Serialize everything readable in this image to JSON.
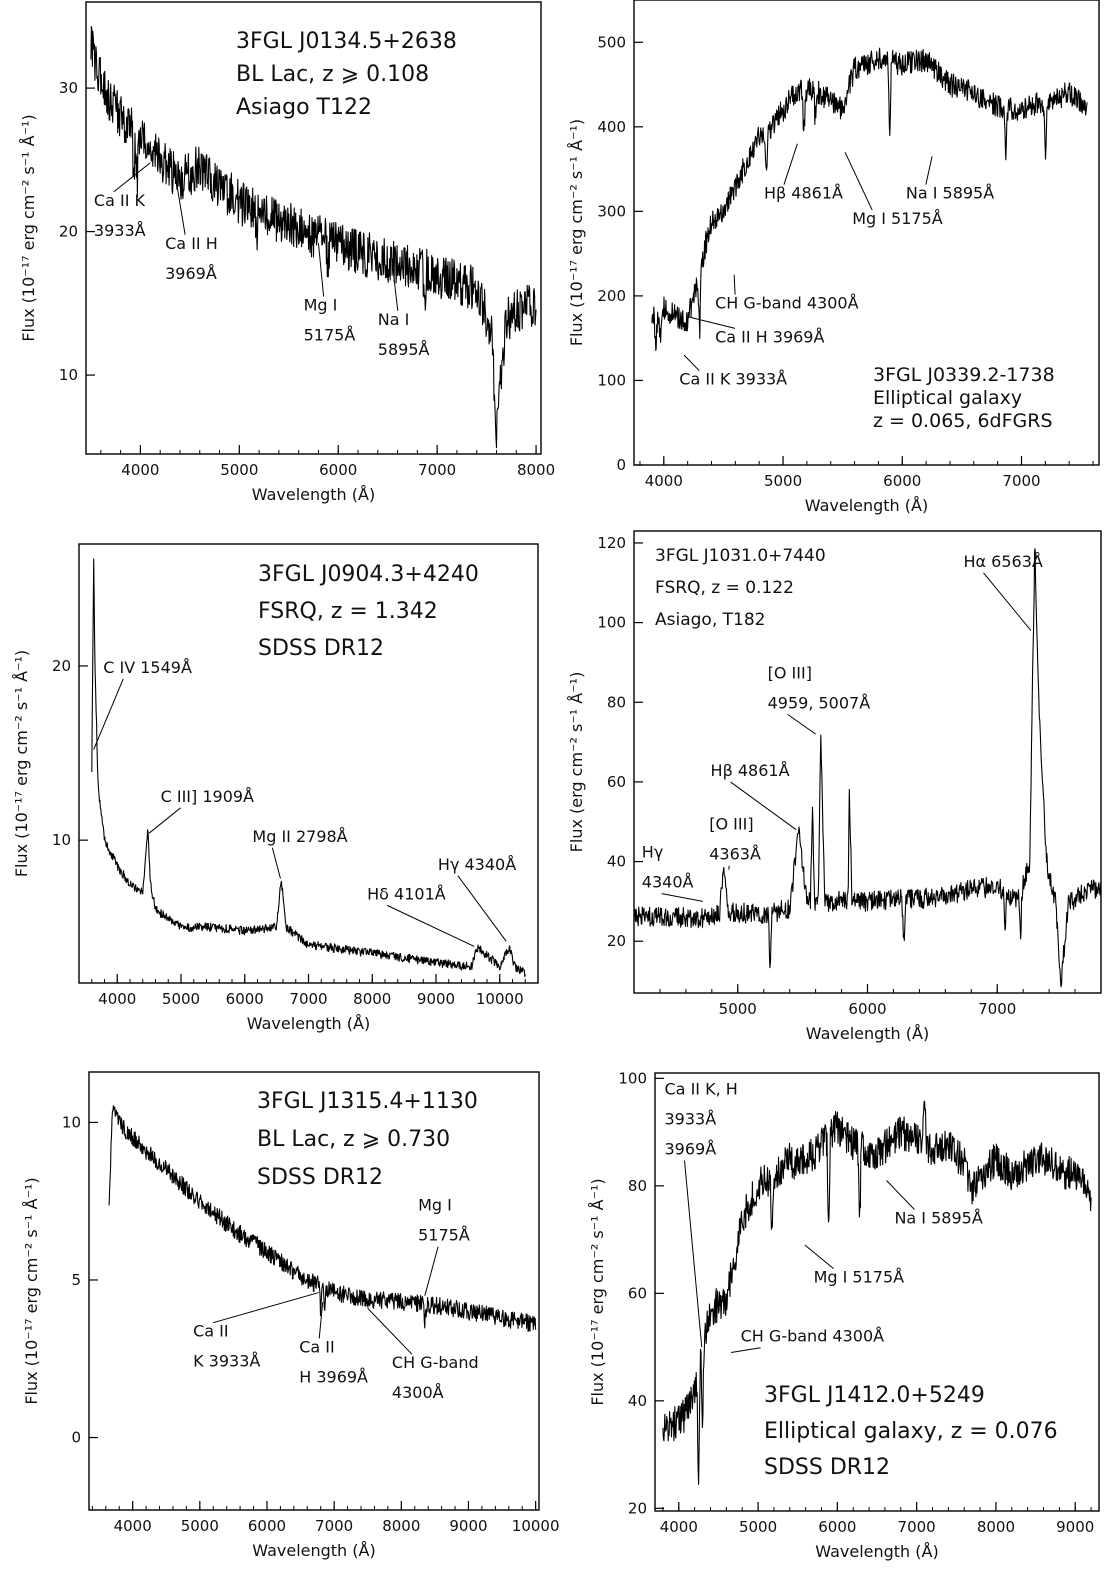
{
  "chart_data": [
    {
      "type": "line",
      "xlabel": "Wavelength (Å)",
      "ylabel": "Flux (10⁻¹⁷ erg cm⁻² s⁻¹ Å⁻¹)",
      "xlim": [
        3450,
        8050
      ],
      "ylim": [
        4.5,
        36
      ],
      "xticks": [
        4000,
        5000,
        6000,
        7000,
        8000
      ],
      "yticks": [
        10,
        20,
        30
      ],
      "info": [
        "3FGL J0134.5+2638",
        "BL Lac, z ⩾ 0.108",
        "Asiago T122"
      ],
      "series": [
        {
          "x": [
            3500,
            3600,
            3700,
            3800,
            4000,
            4200,
            4400,
            4600,
            5000,
            5500,
            6000,
            6500,
            7000,
            7400,
            7550,
            7600,
            7700,
            8000
          ],
          "y": [
            33,
            30.5,
            29,
            28,
            26.5,
            25,
            23.5,
            24.5,
            22,
            20.5,
            19,
            18,
            17,
            16,
            13,
            6,
            14,
            15
          ],
          "noise": 1.6,
          "dips": [
            [
              3933,
              3
            ],
            [
              3969,
              3
            ],
            [
              5175,
              2
            ],
            [
              5895,
              2
            ],
            [
              6870,
              3
            ]
          ]
        }
      ],
      "annotations": [
        {
          "lines": [
            "Ca II K",
            "3933Å"
          ],
          "x": 4100,
          "y": 24.8,
          "tx": 3530,
          "ty": 21.8
        },
        {
          "lines": [
            "Ca II H",
            "3969Å"
          ],
          "x": 4370,
          "y": 23.2,
          "tx": 4250,
          "ty": 18.8
        },
        {
          "lines": [
            "Mg I",
            "5175Å"
          ],
          "x": 5800,
          "y": 19.2,
          "tx": 5650,
          "ty": 14.5
        },
        {
          "lines": [
            "Na I",
            "5895Å"
          ],
          "x": 6550,
          "y": 17.6,
          "tx": 6400,
          "ty": 13.5
        }
      ]
    },
    {
      "type": "line",
      "xlabel": "Wavelength (Å)",
      "ylabel": "Flux (10⁻¹⁷ erg cm⁻² s⁻¹ Å⁻¹)",
      "xlim": [
        3750,
        7650
      ],
      "ylim": [
        0,
        550
      ],
      "xticks": [
        4000,
        5000,
        6000,
        7000
      ],
      "yticks": [
        0,
        100,
        200,
        300,
        400,
        500
      ],
      "info": [
        "3FGL J0339.2-1738",
        "Elliptical galaxy",
        "z = 0.065, 6dFGRS"
      ],
      "series": [
        {
          "x": [
            3900,
            4000,
            4100,
            4200,
            4300,
            4400,
            4500,
            4600,
            4700,
            4800,
            4900,
            5000,
            5100,
            5200,
            5300,
            5400,
            5500,
            5600,
            5800,
            6000,
            6200,
            6400,
            6600,
            6800,
            7000,
            7200,
            7400,
            7550
          ],
          "y": [
            175,
            185,
            175,
            170,
            230,
            290,
            300,
            330,
            360,
            390,
            400,
            420,
            440,
            445,
            440,
            430,
            420,
            470,
            480,
            475,
            480,
            450,
            440,
            425,
            420,
            430,
            440,
            420
          ],
          "noise": 14,
          "dips": [
            [
              3933,
              40
            ],
            [
              3969,
              30
            ],
            [
              4300,
              70
            ],
            [
              4861,
              40
            ],
            [
              5175,
              50
            ],
            [
              5270,
              30
            ],
            [
              5895,
              80
            ],
            [
              6870,
              50
            ],
            [
              7200,
              60
            ]
          ]
        }
      ],
      "annotations": [
        {
          "lines": [
            "CH G-band 4300Å"
          ],
          "x": 4590,
          "y": 225,
          "tx": 4430,
          "ty": 185
        },
        {
          "lines": [
            "Ca II H 3969Å"
          ],
          "x": 4210,
          "y": 175,
          "tx": 4430,
          "ty": 145
        },
        {
          "lines": [
            "Ca II K 3933Å"
          ],
          "x": 4170,
          "y": 130,
          "tx": 4130,
          "ty": 95
        },
        {
          "lines": [
            "Hβ 4861Å"
          ],
          "x": 5120,
          "y": 380,
          "tx": 4840,
          "ty": 315
        },
        {
          "lines": [
            "Mg I 5175Å"
          ],
          "x": 5520,
          "y": 370,
          "tx": 5580,
          "ty": 285
        },
        {
          "lines": [
            "Na I 5895Å"
          ],
          "x": 6250,
          "y": 365,
          "tx": 6030,
          "ty": 315
        }
      ]
    },
    {
      "type": "line",
      "xlabel": "Wavelength (Å)",
      "ylabel": "Flux (10⁻¹⁷ erg cm⁻² s⁻¹ Å⁻¹)",
      "xlim": [
        3400,
        10600
      ],
      "ylim": [
        1.8,
        27
      ],
      "xticks": [
        4000,
        5000,
        6000,
        7000,
        8000,
        9000,
        10000
      ],
      "yticks": [
        10,
        20
      ],
      "info": [
        "3FGL J0904.3+4240",
        "FSRQ, z = 1.342",
        "SDSS DR12"
      ],
      "series": [
        {
          "x": [
            3600,
            3630,
            3650,
            3680,
            3700,
            3800,
            4000,
            4200,
            4400,
            4480,
            4520,
            4600,
            5000,
            5500,
            6000,
            6500,
            6570,
            6650,
            7000,
            8000,
            9000,
            9550,
            9650,
            10000,
            10150,
            10250,
            10400
          ],
          "y": [
            14,
            26,
            20,
            16,
            13,
            10,
            8.5,
            7.5,
            7,
            10.5,
            7.5,
            6,
            5,
            5,
            4.8,
            5,
            7.8,
            5,
            4,
            3.5,
            3,
            2.7,
            3.8,
            2.8,
            3.8,
            2.6,
            2.4
          ],
          "noise": 0.25,
          "dips": []
        }
      ],
      "annotations": [
        {
          "lines": [
            "C IV 1549Å"
          ],
          "x": 3630,
          "y": 15.2,
          "tx": 3780,
          "ty": 19.6
        },
        {
          "lines": [
            "C III] 1909Å"
          ],
          "x": 4500,
          "y": 10.4,
          "tx": 4680,
          "ty": 12.2
        },
        {
          "lines": [
            "Mg II 2798Å"
          ],
          "x": 6560,
          "y": 7.8,
          "tx": 6120,
          "ty": 9.9
        },
        {
          "lines": [
            "Hδ 4101Å"
          ],
          "x": 9600,
          "y": 3.9,
          "tx": 7920,
          "ty": 6.6
        },
        {
          "lines": [
            "Hγ 4340Å"
          ],
          "x": 10100,
          "y": 4.2,
          "tx": 9030,
          "ty": 8.3
        }
      ]
    },
    {
      "type": "line",
      "xlabel": "Wavelength (Å)",
      "ylabel": "Flux (erg cm⁻² s⁻¹ Å⁻¹)",
      "xlim": [
        4200,
        7800
      ],
      "ylim": [
        7,
        123
      ],
      "xticks": [
        5000,
        6000,
        7000
      ],
      "yticks": [
        20,
        40,
        60,
        80,
        100,
        120
      ],
      "info": [
        "3FGL J1031.0+7440",
        "FSRQ, z = 0.122",
        "Asiago, T182"
      ],
      "series": [
        {
          "x": [
            4200,
            4500,
            4800,
            4860,
            4890,
            4930,
            5000,
            5200,
            5400,
            5470,
            5530,
            5560,
            5575,
            5590,
            5620,
            5640,
            5670,
            5850,
            5860,
            5880,
            6000,
            6500,
            7000,
            7150,
            7250,
            7290,
            7320,
            7380,
            7450,
            7490,
            7550,
            7800
          ],
          "y": [
            26,
            26,
            26,
            27,
            38,
            27,
            27,
            27,
            28,
            48,
            30,
            30,
            55,
            30,
            30,
            72,
            30,
            30,
            58,
            30,
            30,
            31,
            34,
            30,
            40,
            120,
            80,
            40,
            30,
            9,
            30,
            34
          ],
          "noise": 2.6,
          "dips": [
            [
              5250,
              14
            ],
            [
              6280,
              10
            ],
            [
              7060,
              10
            ],
            [
              7180,
              10
            ]
          ]
        }
      ],
      "annotations": [
        {
          "lines": [
            "Hγ",
            "4340Å"
          ],
          "x": 4730,
          "y": 30,
          "tx": 4260,
          "ty": 41
        },
        {
          "lines": [
            "[O III]",
            "4363Å"
          ],
          "x": 4930,
          "y": 38,
          "tx": 4780,
          "ty": 48
        },
        {
          "lines": [
            "Hβ 4861Å"
          ],
          "x": 5450,
          "y": 48,
          "tx": 4790,
          "ty": 61.5
        },
        {
          "lines": [
            "[O III]",
            "4959, 5007Å"
          ],
          "x": 5600,
          "y": 72,
          "tx": 5230,
          "ty": 86
        },
        {
          "lines": [
            "Hα 6563Å"
          ],
          "x": 7260,
          "y": 98,
          "tx": 6740,
          "ty": 114
        }
      ]
    },
    {
      "type": "line",
      "xlabel": "Wavelength (Å)",
      "ylabel": "Flux (10⁻¹⁷ erg cm⁻² s⁻¹ Å⁻¹)",
      "xlim": [
        3350,
        10050
      ],
      "ylim": [
        -2.3,
        11.6
      ],
      "xticks": [
        4000,
        5000,
        6000,
        7000,
        8000,
        9000,
        10000
      ],
      "yticks": [
        0,
        5,
        10
      ],
      "info": [
        "3FGL J1315.4+1130",
        "BL Lac, z ⩾ 0.730",
        "SDSS DR12"
      ],
      "series": [
        {
          "x": [
            3650,
            3700,
            3800,
            4000,
            4500,
            5000,
            5500,
            6000,
            6500,
            7000,
            7500,
            8000,
            8500,
            9000,
            9500,
            10000
          ],
          "y": [
            7.4,
            10.4,
            10,
            9.5,
            8.5,
            7.5,
            6.6,
            5.9,
            5.1,
            4.6,
            4.4,
            4.3,
            4.2,
            4.0,
            3.8,
            3.6
          ],
          "noise": 0.28,
          "dips": [
            [
              6800,
              0.7
            ],
            [
              6860,
              0.7
            ],
            [
              8350,
              0.5
            ]
          ]
        }
      ],
      "annotations": [
        {
          "lines": [
            "Ca II",
            "K 3933Å"
          ],
          "x": 6770,
          "y": 4.6,
          "tx": 4900,
          "ty": 3.2
        },
        {
          "lines": [
            "Ca II",
            "H 3969Å"
          ],
          "x": 6830,
          "y": 4.3,
          "tx": 6480,
          "ty": 2.7
        },
        {
          "lines": [
            "CH G-band",
            "4300Å"
          ],
          "x": 7500,
          "y": 4.1,
          "tx": 7860,
          "ty": 2.2
        },
        {
          "lines": [
            "Mg I",
            "5175Å"
          ],
          "x": 8350,
          "y": 4.5,
          "tx": 8250,
          "ty": 7.2
        }
      ]
    },
    {
      "type": "line",
      "xlabel": "Wavelength (Å)",
      "ylabel": "Flux (10⁻¹⁷ erg cm⁻² s⁻¹ Å⁻¹)",
      "xlim": [
        3700,
        9300
      ],
      "ylim": [
        19.5,
        101
      ],
      "xticks": [
        4000,
        5000,
        6000,
        7000,
        8000,
        9000
      ],
      "yticks": [
        20,
        40,
        60,
        80,
        100
      ],
      "info": [
        "3FGL J1412.0+5249",
        "Elliptical galaxy, z = 0.076",
        "SDSS DR12"
      ],
      "series": [
        {
          "x": [
            3800,
            4000,
            4100,
            4200,
            4300,
            4400,
            4600,
            4700,
            4800,
            5000,
            5200,
            5400,
            5500,
            5700,
            6000,
            6200,
            6500,
            6800,
            7000,
            7200,
            7400,
            7600,
            7700,
            7800,
            8000,
            8200,
            8400,
            8600,
            8800,
            9000,
            9100,
            9200
          ],
          "y": [
            35,
            36,
            38,
            42,
            50,
            57,
            59,
            66,
            74,
            80,
            82,
            85,
            84,
            86,
            91,
            88,
            86,
            90,
            89,
            87,
            88,
            84,
            79,
            82,
            85,
            82,
            84,
            85,
            83,
            82,
            80,
            77
          ],
          "noise": 3.2,
          "dips": [
            [
              4250,
              22
            ],
            [
              4300,
              12
            ],
            [
              5175,
              10
            ],
            [
              5890,
              16
            ],
            [
              6280,
              14
            ],
            [
              7100,
              -10
            ]
          ]
        }
      ],
      "annotations": [
        {
          "lines": [
            "Ca II K, H",
            "3933Å",
            "3969Å"
          ],
          "x": 4290,
          "y": 50,
          "tx": 3820,
          "ty": 97
        },
        {
          "lines": [
            "CH G-band 4300Å"
          ],
          "x": 4660,
          "y": 49,
          "tx": 4780,
          "ty": 51
        },
        {
          "lines": [
            "Mg I 5175Å"
          ],
          "x": 5590,
          "y": 69,
          "tx": 5700,
          "ty": 62
        },
        {
          "lines": [
            "Na I 5895Å"
          ],
          "x": 6620,
          "y": 81,
          "tx": 6720,
          "ty": 73
        }
      ]
    }
  ]
}
